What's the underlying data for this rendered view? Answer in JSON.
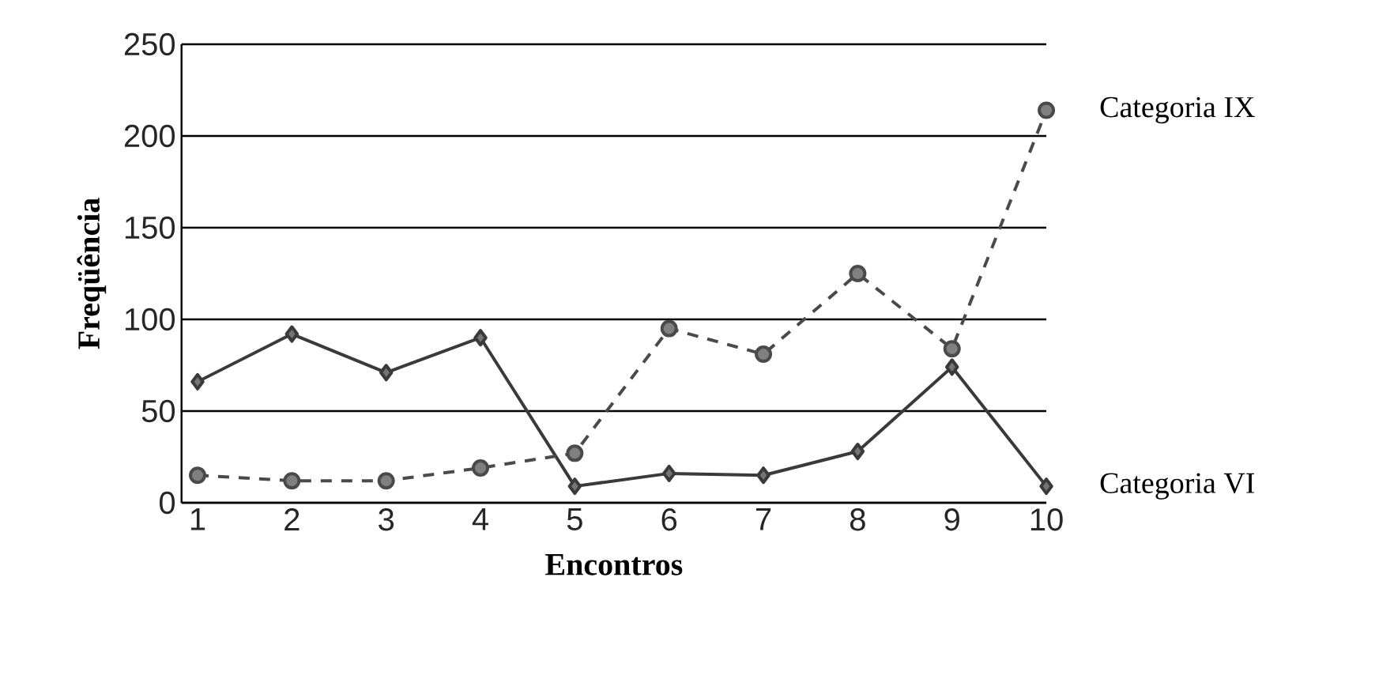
{
  "chart_data": {
    "type": "line",
    "xlabel": "Encontros",
    "ylabel": "Freqüência",
    "categories": [
      "1",
      "2",
      "3",
      "4",
      "5",
      "6",
      "7",
      "8",
      "9",
      "10"
    ],
    "series": [
      {
        "name": "Categoria VI",
        "color": "#3a3a3a",
        "marker": "diamond",
        "line_style": "solid",
        "values": [
          66,
          92,
          71,
          90,
          9,
          16,
          15,
          28,
          74,
          9
        ]
      },
      {
        "name": "Categoria IX",
        "color": "#4a4a4a",
        "marker": "circle",
        "line_style": "dashed",
        "values": [
          15,
          12,
          12,
          19,
          27,
          95,
          81,
          125,
          84,
          214
        ]
      }
    ],
    "ylim": [
      0,
      250
    ],
    "yticks": [
      0,
      50,
      100,
      150,
      200,
      250
    ],
    "grid": "y"
  }
}
